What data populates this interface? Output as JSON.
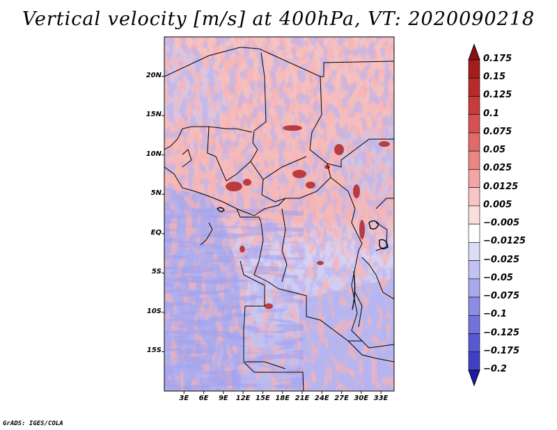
{
  "title": "Vertical velocity [m/s] at 400hPa, VT: 2020090218",
  "credit": "GrADS: IGES/COLA",
  "map": {
    "variable": "Vertical velocity",
    "units": "m/s",
    "level": "400hPa",
    "valid_time": "2020090218",
    "lat_range": [
      -20,
      25
    ],
    "lon_range": [
      0,
      35
    ],
    "y_axis_ticks": [
      {
        "lat": 20,
        "label": "20N"
      },
      {
        "lat": 15,
        "label": "15N"
      },
      {
        "lat": 10,
        "label": "10N"
      },
      {
        "lat": 5,
        "label": "5N"
      },
      {
        "lat": 0,
        "label": "EQ"
      },
      {
        "lat": -5,
        "label": "5S"
      },
      {
        "lat": -10,
        "label": "10S"
      },
      {
        "lat": -15,
        "label": "15S"
      }
    ],
    "x_axis_ticks": [
      {
        "lon": 3,
        "label": "3E"
      },
      {
        "lon": 6,
        "label": "6E"
      },
      {
        "lon": 9,
        "label": "9E"
      },
      {
        "lon": 12,
        "label": "12E"
      },
      {
        "lon": 15,
        "label": "15E"
      },
      {
        "lon": 18,
        "label": "18E"
      },
      {
        "lon": 21,
        "label": "21E"
      },
      {
        "lon": 24,
        "label": "24E"
      },
      {
        "lon": 27,
        "label": "27E"
      },
      {
        "lon": 30,
        "label": "30E"
      },
      {
        "lon": 33,
        "label": "33E"
      }
    ]
  },
  "colorbar": {
    "levels": [
      {
        "label": "0.175",
        "color": "#a51c1c"
      },
      {
        "label": "0.15",
        "color": "#b72b2b"
      },
      {
        "label": "0.125",
        "color": "#c73b3b"
      },
      {
        "label": "0.1",
        "color": "#d65252"
      },
      {
        "label": "0.075",
        "color": "#e06a6a"
      },
      {
        "label": "0.05",
        "color": "#ea8686"
      },
      {
        "label": "0.025",
        "color": "#f3a5a5"
      },
      {
        "label": "0.0125",
        "color": "#f8c4c4"
      },
      {
        "label": "0.005",
        "color": "#fbdede"
      },
      {
        "label": "−0.005",
        "color": "#ffffff"
      },
      {
        "label": "−0.0125",
        "color": "#dcdcf8"
      },
      {
        "label": "−0.025",
        "color": "#c2c2f2"
      },
      {
        "label": "−0.05",
        "color": "#a8a8ec"
      },
      {
        "label": "−0.075",
        "color": "#8c8ce4"
      },
      {
        "label": "−0.1",
        "color": "#7272dc"
      },
      {
        "label": "−0.125",
        "color": "#5858d2"
      },
      {
        "label": "−0.175",
        "color": "#4040c6"
      },
      {
        "label": "−0.2",
        "color": "#2a2ab8"
      }
    ],
    "top_color": "#8c1212",
    "bottom_color": "#1c1ca8"
  }
}
